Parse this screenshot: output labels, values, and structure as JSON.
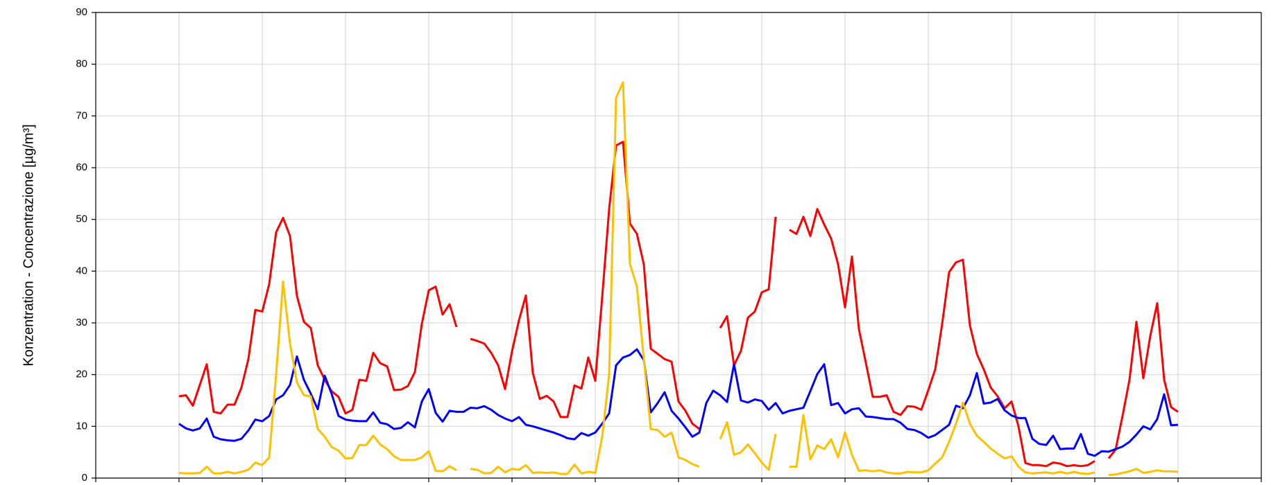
{
  "chart_data": {
    "type": "line",
    "y_label": "Konzentration - Concentrazione [µg/m³]",
    "ylim": [
      0,
      90
    ],
    "yticks": [
      0,
      10,
      20,
      30,
      40,
      50,
      60,
      70,
      80,
      90
    ],
    "grid": true,
    "categories": [
      null,
      null,
      null,
      null,
      null,
      null,
      null,
      null,
      null,
      null,
      null,
      null,
      null,
      null,
      null,
      null,
      null,
      null,
      null,
      null,
      null,
      null,
      null,
      null,
      null,
      null,
      null,
      null,
      null,
      null,
      null,
      null,
      null,
      null,
      null,
      null,
      null,
      null,
      null,
      null,
      null,
      null,
      null,
      null,
      null,
      null,
      null,
      null,
      null,
      null,
      null,
      null,
      null,
      null,
      null,
      null,
      null,
      null,
      null,
      null,
      null,
      null,
      null,
      null,
      null,
      null,
      null,
      null,
      null,
      null,
      null,
      null,
      null,
      null,
      null,
      null,
      null,
      null,
      null,
      null,
      null,
      null,
      null,
      null,
      null,
      null,
      null,
      null,
      null,
      null,
      null,
      null,
      null,
      null,
      null,
      null,
      null,
      null,
      null,
      null,
      null,
      null,
      null,
      null,
      null,
      null,
      null,
      null,
      null,
      null,
      null,
      null,
      null,
      null,
      null,
      null,
      null,
      null,
      null,
      null,
      null,
      null,
      null,
      null,
      null,
      null,
      null,
      null,
      null,
      null,
      null,
      null,
      null,
      null,
      null,
      null,
      null,
      null,
      null,
      null,
      null,
      null,
      null,
      null,
      null
    ],
    "series": [
      {
        "color": "#ff0000",
        "values": [
          15.8,
          16,
          14,
          18,
          22,
          12.8,
          12.5,
          14.2,
          14.2,
          17.5,
          23,
          32.5,
          32.2,
          37.5,
          47.5,
          50.3,
          46.8,
          35.2,
          30.2,
          29,
          21.8,
          19,
          16.8,
          15.7,
          12.5,
          13.2,
          19,
          18.8,
          24.2,
          22.2,
          21.6,
          17,
          17.1,
          17.8,
          20.5,
          29.8,
          36.3,
          37,
          31.6,
          33.6,
          29.2,
          null,
          26.9,
          26.5,
          26,
          24.2,
          21.8,
          17.2,
          24.5,
          30.5,
          35.3,
          20.3,
          15.3,
          15.9,
          14.8,
          11.8,
          11.8,
          17.9,
          17.3,
          23.3,
          18.8,
          35,
          52,
          64.3,
          65,
          49.2,
          47.2,
          41.3,
          25,
          24,
          23,
          22.5,
          14.8,
          13,
          10.5,
          9.5,
          null,
          null,
          29,
          31.3,
          21.8,
          24.6,
          31,
          32.2,
          35.9,
          36.5,
          50.5,
          null,
          48,
          47.2,
          50.5,
          46.8,
          52,
          49,
          46.3,
          41.3,
          33,
          42.8,
          28.8,
          22.3,
          15.7,
          15.7,
          16,
          12.8,
          12.2,
          13.9,
          13.8,
          13.2,
          17,
          21,
          29.8,
          39.8,
          41.7,
          42.2,
          29.5,
          24,
          21,
          17.5,
          15.8,
          13.5,
          14.8,
          10,
          2.9,
          2.5,
          2.5,
          2.3,
          3,
          2.8,
          2.3,
          2.5,
          2.3,
          2.5,
          3.3,
          null,
          3.8,
          5.5,
          12,
          19,
          30.2,
          19.3,
          27.5,
          33.8,
          19,
          13.7,
          12.8
        ]
      },
      {
        "color": "#0000ff",
        "values": [
          10.5,
          9.6,
          9.2,
          9.6,
          11.5,
          8,
          7.5,
          7.3,
          7.2,
          7.6,
          9.2,
          11.3,
          11,
          12,
          15.2,
          16,
          18,
          23.5,
          19,
          16.3,
          13.3,
          19.8,
          16.3,
          12,
          11.3,
          11.1,
          11,
          11,
          12.7,
          10.7,
          10.4,
          9.5,
          9.7,
          10.8,
          9.8,
          14.8,
          17.2,
          12.6,
          10.9,
          13,
          12.8,
          12.8,
          13.6,
          13.5,
          13.9,
          13.2,
          12.2,
          11.5,
          11,
          11.8,
          10.3,
          10,
          9.6,
          9.2,
          8.8,
          8.3,
          7.7,
          7.5,
          8.7,
          8.2,
          8.8,
          10.5,
          12.5,
          21.8,
          23.3,
          23.8,
          24.9,
          22.8,
          12.7,
          14.5,
          16.6,
          13,
          11.5,
          9.8,
          8,
          8.8,
          14.5,
          16.9,
          16,
          14.7,
          22,
          15,
          14.6,
          15.2,
          14.9,
          13.2,
          14.5,
          12.5,
          13,
          13.3,
          13.6,
          16.8,
          20.1,
          22,
          14.1,
          14.5,
          12.5,
          13.3,
          13.5,
          11.9,
          11.8,
          11.6,
          11.4,
          11.4,
          10.7,
          9.5,
          9.3,
          8.7,
          7.8,
          8.3,
          9.3,
          10.3,
          14,
          13.5,
          16,
          20.3,
          14.4,
          14.6,
          15.3,
          13.1,
          12.1,
          11.6,
          11.6,
          7.6,
          6.6,
          6.4,
          8.2,
          5.6,
          5.7,
          5.7,
          8.5,
          4.7,
          4.3,
          5.2,
          5.1,
          5.6,
          6.1,
          7,
          8.4,
          10,
          9.4,
          11.4,
          16.2,
          10.2,
          10.3
        ]
      },
      {
        "color": "#ffc000",
        "values": [
          1,
          0.9,
          0.9,
          1,
          2.2,
          0.9,
          0.9,
          1.2,
          0.9,
          1.2,
          1.6,
          3,
          2.5,
          4,
          20,
          38,
          26,
          18.5,
          16,
          15.8,
          9.5,
          8,
          6,
          5.3,
          3.8,
          3.9,
          6.4,
          6.4,
          8.2,
          6.5,
          5.6,
          4.2,
          3.5,
          3.5,
          3.5,
          4,
          5.2,
          1.4,
          1.3,
          2.3,
          1.5,
          null,
          1.8,
          1.6,
          0.9,
          1,
          2.2,
          1.1,
          1.8,
          1.6,
          2.5,
          1,
          1.1,
          1,
          1.1,
          0.8,
          0.8,
          2.6,
          0.9,
          1.2,
          1,
          8,
          20,
          73.5,
          76.5,
          41.4,
          37,
          23,
          9.5,
          9.3,
          8,
          8.8,
          4,
          3.5,
          2.7,
          2.2,
          null,
          null,
          7.5,
          10.8,
          4.5,
          5,
          6.5,
          4.8,
          3,
          1.6,
          8.5,
          null,
          2.2,
          2.2,
          12.2,
          3.6,
          6.3,
          5.6,
          7.5,
          4,
          8.8,
          4.5,
          1.4,
          1.5,
          1.3,
          1.5,
          1.1,
          0.9,
          0.9,
          1.2,
          1.1,
          1.1,
          1.5,
          2.8,
          4,
          7,
          10.5,
          14.6,
          10.5,
          8.2,
          7,
          5.7,
          4.7,
          3.8,
          4.2,
          2.2,
          1.1,
          0.9,
          1,
          1.1,
          0.9,
          1.2,
          0.9,
          1.2,
          0.9,
          0.8,
          1.1,
          null,
          0.6,
          0.7,
          1,
          1.3,
          1.8,
          1,
          1.2,
          1.5,
          1.3,
          1.3,
          1.2
        ]
      }
    ]
  }
}
